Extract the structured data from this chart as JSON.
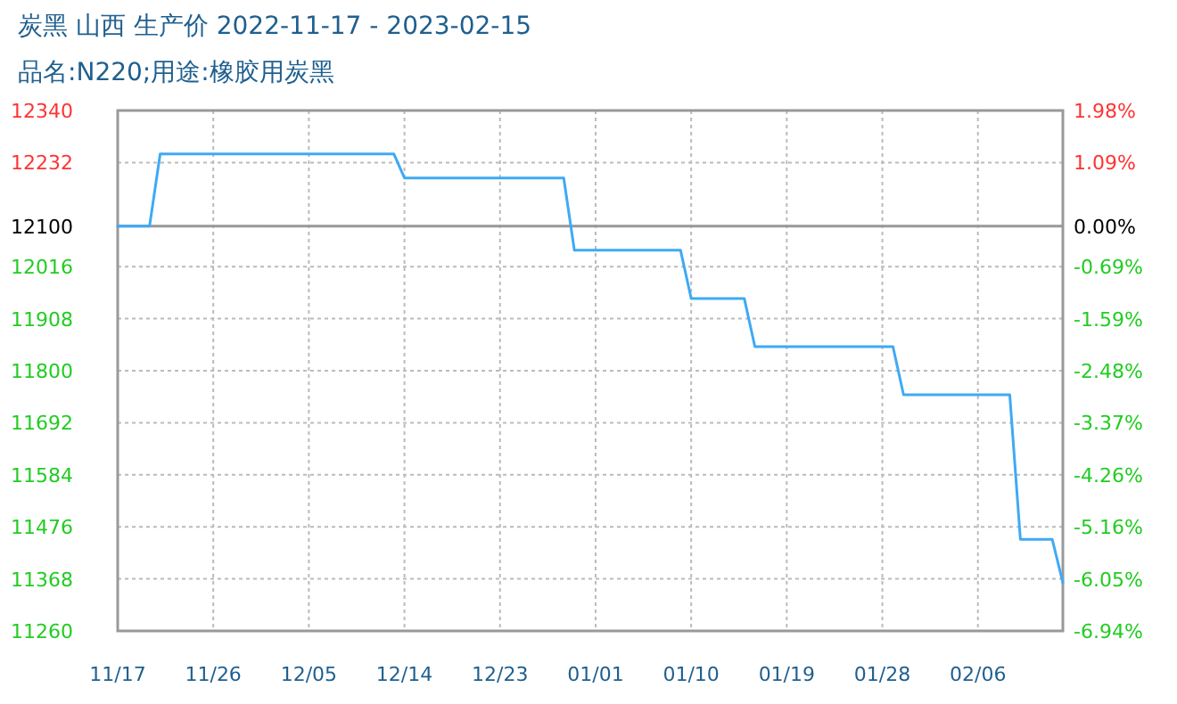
{
  "chart_data": {
    "type": "line",
    "title": "炭黑 山西 生产价 2022-11-17 - 2023-02-15",
    "subtitle": "品名:N220;用途:橡胶用炭黑",
    "x": [
      "2022-11-17",
      "2022-11-20",
      "2022-11-21",
      "2022-12-13",
      "2022-12-14",
      "2022-12-29",
      "2022-12-30",
      "2023-01-09",
      "2023-01-10",
      "2023-01-15",
      "2023-01-16",
      "2023-01-29",
      "2023-01-30",
      "2023-02-09",
      "2023-02-10",
      "2023-02-13",
      "2023-02-14"
    ],
    "series": [
      {
        "color": "#3fa9f5",
        "values": [
          12100,
          12100,
          12250,
          12250,
          12200,
          12200,
          12050,
          12050,
          11950,
          11950,
          11850,
          11850,
          11750,
          11750,
          11450,
          11450,
          11360
        ]
      }
    ],
    "xlim": [
      "2022-11-17",
      "2023-02-14"
    ],
    "xticks": [
      {
        "value": "2022-11-17",
        "label": "11/17"
      },
      {
        "value": "2022-11-26",
        "label": "11/26"
      },
      {
        "value": "2022-12-05",
        "label": "12/05"
      },
      {
        "value": "2022-12-14",
        "label": "12/14"
      },
      {
        "value": "2022-12-23",
        "label": "12/23"
      },
      {
        "value": "2023-01-01",
        "label": "01/01"
      },
      {
        "value": "2023-01-10",
        "label": "01/10"
      },
      {
        "value": "2023-01-19",
        "label": "01/19"
      },
      {
        "value": "2023-01-28",
        "label": "01/28"
      },
      {
        "value": "2023-02-06",
        "label": "02/06"
      }
    ],
    "ylim": [
      11260,
      12340
    ],
    "yticks": [
      11260,
      11368,
      11476,
      11584,
      11692,
      11800,
      11908,
      12016,
      12100,
      12232,
      12340
    ],
    "y2lim": [
      -6.94,
      1.98
    ],
    "y2ticks": [
      {
        "value": -6.94,
        "label": "-6.94%"
      },
      {
        "value": -6.05,
        "label": "-6.05%"
      },
      {
        "value": -5.16,
        "label": "-5.16%"
      },
      {
        "value": -4.26,
        "label": "-4.26%"
      },
      {
        "value": -3.37,
        "label": "-3.37%"
      },
      {
        "value": -2.48,
        "label": "-2.48%"
      },
      {
        "value": -1.59,
        "label": "-1.59%"
      },
      {
        "value": -0.69,
        "label": "-0.69%"
      },
      {
        "value": 0,
        "label": "0.00%"
      },
      {
        "value": 1.09,
        "label": "1.09%"
      },
      {
        "value": 1.98,
        "label": "1.98%"
      }
    ],
    "ref_lines": [
      {
        "axis": "y",
        "value": 12100,
        "color": "#999999"
      }
    ],
    "grid": true,
    "marker": "none",
    "line_style": "solid"
  }
}
